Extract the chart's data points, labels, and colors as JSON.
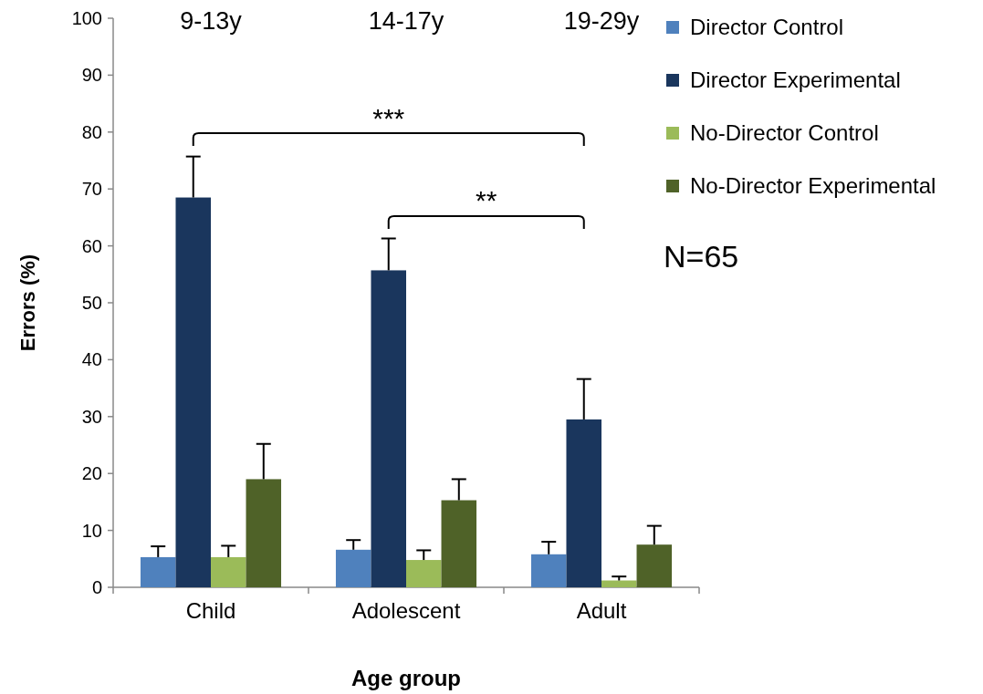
{
  "chart_data": {
    "type": "bar",
    "xlabel": "Age group",
    "ylabel": "Errors (%)",
    "categories": [
      "Child",
      "Adolescent",
      "Adult"
    ],
    "series": [
      {
        "name": "Director Control",
        "color": "#4f81bd",
        "values": [
          5.3,
          6.6,
          5.8
        ],
        "errors": [
          [
            5.3,
            7.2
          ],
          [
            6.6,
            8.3
          ],
          [
            5.8,
            8.0
          ]
        ]
      },
      {
        "name": "Director Experimental",
        "color": "#1a365d",
        "values": [
          68.5,
          55.7,
          29.5
        ],
        "errors": [
          [
            68.5,
            75.7
          ],
          [
            55.7,
            61.3
          ],
          [
            29.5,
            36.6
          ]
        ]
      },
      {
        "name": "No-Director Control",
        "color": "#9bbb59",
        "values": [
          5.3,
          4.8,
          1.2
        ],
        "errors": [
          [
            5.3,
            7.3
          ],
          [
            4.8,
            6.5
          ],
          [
            1.2,
            1.9
          ]
        ]
      },
      {
        "name": "No-Director Experimental",
        "color": "#4f6228",
        "values": [
          19.0,
          15.3,
          7.5
        ],
        "errors": [
          [
            19.0,
            25.2
          ],
          [
            15.3,
            19.0
          ],
          [
            7.5,
            10.8
          ]
        ]
      }
    ],
    "ylim": [
      0,
      100
    ],
    "yticks": [
      0,
      10,
      20,
      30,
      40,
      50,
      60,
      70,
      80,
      90,
      100
    ],
    "legend": "right",
    "annotations": [
      "9-13y",
      "14-17y",
      "19-29y",
      "***",
      "**",
      "N=65"
    ]
  }
}
